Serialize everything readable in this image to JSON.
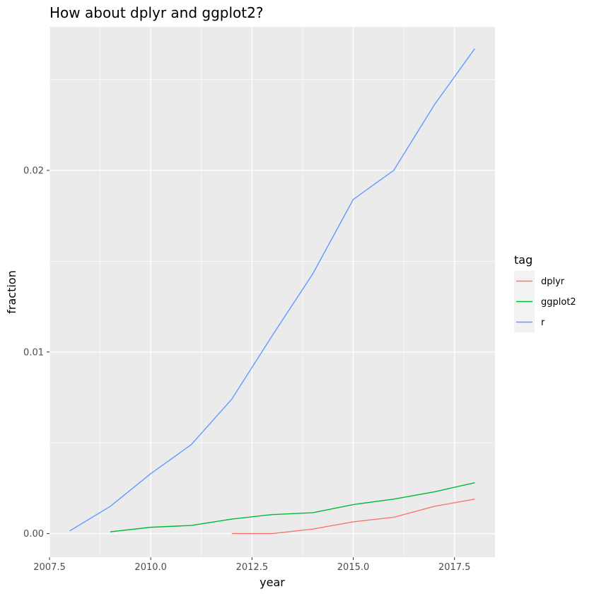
{
  "chart_data": {
    "type": "line",
    "title": "How about dplyr and ggplot2?",
    "xlabel": "year",
    "ylabel": "fraction",
    "xlim": [
      2007.5,
      2018.5
    ],
    "ylim": [
      -0.0013,
      0.0279
    ],
    "x_ticks": [
      2007.5,
      2010.0,
      2012.5,
      2015.0,
      2017.5
    ],
    "x_tick_labels": [
      "2007.5",
      "2010.0",
      "2012.5",
      "2015.0",
      "2017.5"
    ],
    "y_ticks": [
      0.0,
      0.01,
      0.02
    ],
    "y_tick_labels": [
      "0.00",
      "0.01",
      "0.02"
    ],
    "grid": true,
    "legend": {
      "title": "tag",
      "position": "right"
    },
    "series": [
      {
        "name": "dplyr",
        "color": "#F8766D",
        "x": [
          2012,
          2013,
          2014,
          2015,
          2016,
          2017,
          2018
        ],
        "y": [
          0.0,
          0.0,
          0.00025,
          0.00065,
          0.0009,
          0.0015,
          0.0019
        ]
      },
      {
        "name": "ggplot2",
        "color": "#00BA38",
        "x": [
          2009,
          2010,
          2011,
          2012,
          2013,
          2014,
          2015,
          2016,
          2017,
          2018
        ],
        "y": [
          0.0001,
          0.00035,
          0.00045,
          0.0008,
          0.00105,
          0.00115,
          0.0016,
          0.0019,
          0.0023,
          0.0028
        ]
      },
      {
        "name": "r",
        "color": "#619CFF",
        "x": [
          2008,
          2009,
          2010,
          2011,
          2012,
          2013,
          2014,
          2015,
          2016,
          2017,
          2018
        ],
        "y": [
          0.00015,
          0.0015,
          0.0033,
          0.0049,
          0.0074,
          0.0109,
          0.0143,
          0.0184,
          0.02,
          0.0236,
          0.0267
        ]
      }
    ]
  }
}
